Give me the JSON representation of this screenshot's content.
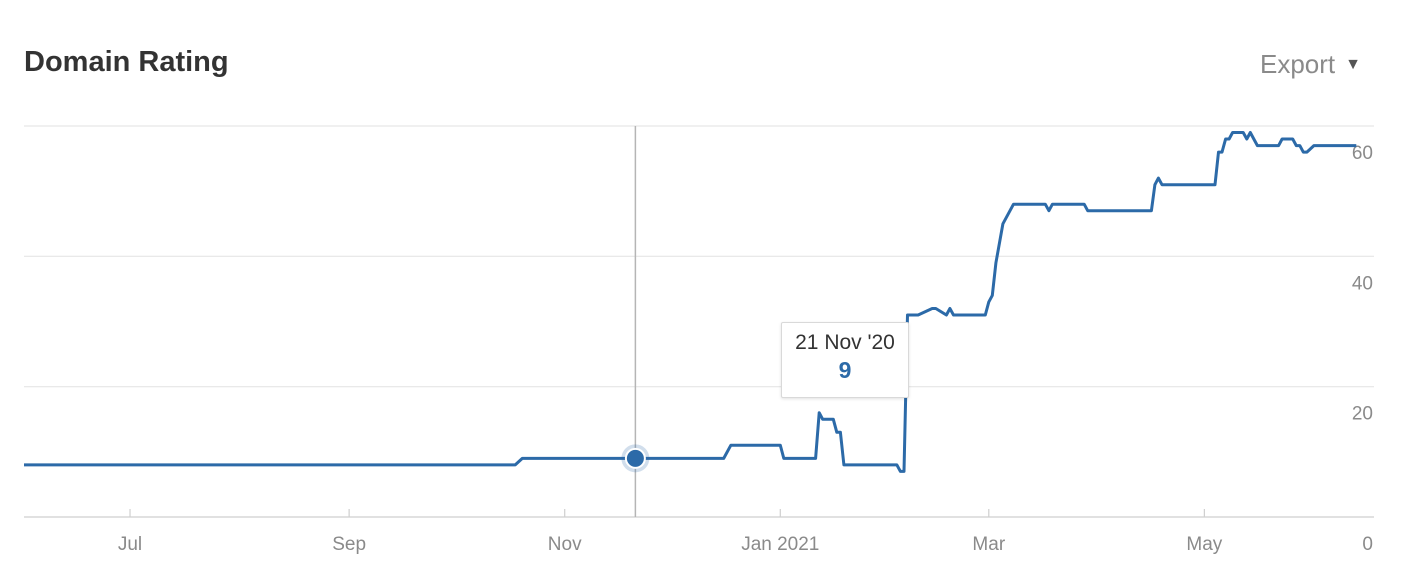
{
  "header": {
    "title": "Domain Rating",
    "export_label": "Export",
    "export_icon": "caret-down-icon"
  },
  "tooltip": {
    "date": "21 Nov '20",
    "value": "9"
  },
  "chart_data": {
    "type": "line",
    "title": "Domain Rating",
    "xlabel": "",
    "ylabel": "",
    "x_tick_labels": [
      "Jul",
      "Sep",
      "Nov",
      "Jan 2021",
      "Mar",
      "May"
    ],
    "x_ticks": [
      "2020-07-01",
      "2020-09-01",
      "2020-11-01",
      "2021-01-01",
      "2021-03-01",
      "2021-05-01"
    ],
    "xlim": [
      "2020-06-01",
      "2021-06-18"
    ],
    "y_ticks": [
      0,
      20,
      40,
      60
    ],
    "ylim": [
      0,
      60
    ],
    "grid": true,
    "line_color": "#2c6aa8",
    "series": [
      {
        "x": [
          "2020-06-01",
          "2020-10-18",
          "2020-10-20",
          "2020-12-16",
          "2020-12-18",
          "2021-01-01",
          "2021-01-02",
          "2021-01-11",
          "2021-01-12",
          "2021-01-13",
          "2021-01-16",
          "2021-01-17",
          "2021-01-18",
          "2021-01-19",
          "2021-02-03",
          "2021-02-04",
          "2021-02-05",
          "2021-02-06",
          "2021-02-09",
          "2021-02-13",
          "2021-02-14",
          "2021-02-17",
          "2021-02-18",
          "2021-02-19",
          "2021-02-20",
          "2021-02-28",
          "2021-03-01",
          "2021-03-02",
          "2021-03-03",
          "2021-03-05",
          "2021-03-08",
          "2021-03-10",
          "2021-03-17",
          "2021-03-18",
          "2021-03-19",
          "2021-03-20",
          "2021-03-28",
          "2021-03-29",
          "2021-04-16",
          "2021-04-17",
          "2021-04-18",
          "2021-04-19",
          "2021-05-04",
          "2021-05-05",
          "2021-05-06",
          "2021-05-07",
          "2021-05-08",
          "2021-05-09",
          "2021-05-12",
          "2021-05-13",
          "2021-05-14",
          "2021-05-15",
          "2021-05-16",
          "2021-05-22",
          "2021-05-23",
          "2021-05-26",
          "2021-05-27",
          "2021-05-28",
          "2021-05-29",
          "2021-05-30",
          "2021-06-01",
          "2021-06-13"
        ],
        "values": [
          8,
          8,
          9,
          9,
          11,
          11,
          9,
          9,
          16,
          15,
          15,
          13,
          13,
          8,
          8,
          7,
          7,
          31,
          31,
          32,
          32,
          31,
          32,
          31,
          31,
          31,
          33,
          34,
          39,
          45,
          48,
          48,
          48,
          47,
          48,
          48,
          48,
          47,
          47,
          51,
          52,
          51,
          51,
          56,
          56,
          58,
          58,
          59,
          59,
          58,
          59,
          58,
          57,
          57,
          58,
          58,
          57,
          57,
          56,
          56,
          57,
          57
        ]
      }
    ],
    "highlight": {
      "x": "2020-11-21",
      "y": 9
    }
  }
}
